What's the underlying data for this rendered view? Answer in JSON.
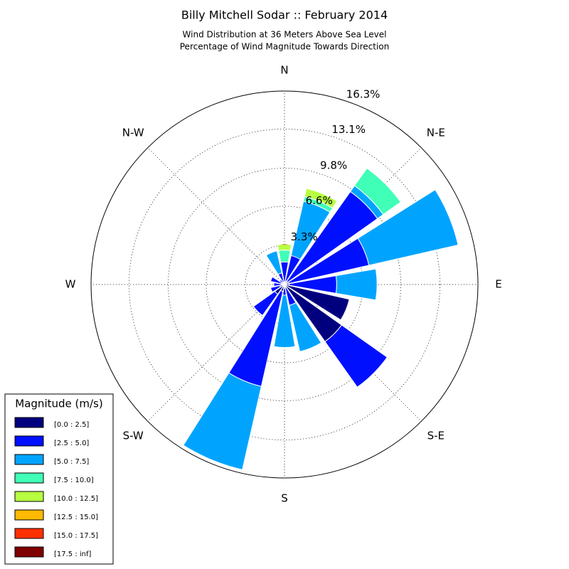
{
  "chart_data": {
    "type": "windrose",
    "title": "Billy Mitchell Sodar :: February 2014",
    "subtitle": [
      "Wind Distribution at 36 Meters Above Sea Level",
      "Percentage of Wind Magnitude Towards Direction"
    ],
    "categories": [
      "N",
      null,
      "N-E",
      null,
      "E",
      null,
      "S-E",
      null,
      "S",
      null,
      "S-W",
      null,
      "W",
      null,
      "N-W",
      null
    ],
    "rlim": [
      0,
      16.3
    ],
    "rticks": [
      {
        "value": 3.3,
        "label": "3.3%"
      },
      {
        "value": 6.6,
        "label": "6.6%"
      },
      {
        "value": 9.8,
        "label": "9.8%"
      },
      {
        "value": 13.1,
        "label": "13.1%"
      },
      {
        "value": 16.3,
        "label": "16.3%"
      }
    ],
    "grid": true,
    "legend_title": "Magnitude (m/s)",
    "legend_position": "lower left",
    "series": [
      {
        "name": "[0.0 : 2.5]",
        "color": "#00007f",
        "values": [
          0.2,
          0.3,
          0.3,
          0.4,
          0.4,
          5.6,
          5.9,
          0.3,
          0.3,
          0.6,
          1.0,
          0.4,
          0.3,
          0.3,
          0.2,
          0.2
        ]
      },
      {
        "name": "[2.5 : 5.0]",
        "color": "#0010ff",
        "values": [
          1.7,
          2.2,
          9.3,
          6.9,
          4.0,
          0,
          4.7,
          1.5,
          0.6,
          8.2,
          2.2,
          0.8,
          0.6,
          0.9,
          0.3,
          0.8
        ]
      },
      {
        "name": "[5.0 : 7.5]",
        "color": "#00a4ff",
        "values": [
          0,
          4.7,
          0.6,
          7.7,
          3.4,
          0,
          0,
          4.0,
          4.4,
          7.2,
          0,
          0,
          0,
          0,
          0,
          1.9
        ]
      },
      {
        "name": "[7.5 : 10.0]",
        "color": "#40ffb7",
        "values": [
          1.0,
          0.4,
          1.8,
          0,
          0,
          0,
          0,
          0,
          0,
          0,
          0,
          0,
          0,
          0,
          0,
          0
        ]
      },
      {
        "name": "[10.0 : 12.5]",
        "color": "#b7ff40",
        "values": [
          0.5,
          0.7,
          0,
          0,
          0,
          0,
          0,
          0,
          0,
          0,
          0,
          0,
          0,
          0,
          0,
          0
        ]
      },
      {
        "name": "[12.5 : 15.0]",
        "color": "#ffb900",
        "values": [
          0,
          0,
          0,
          0,
          0,
          0,
          0,
          0,
          0,
          0,
          0,
          0,
          0,
          0,
          0,
          0
        ]
      },
      {
        "name": "[15.0 : 17.5]",
        "color": "#ff3000",
        "values": [
          0,
          0,
          0,
          0,
          0,
          0,
          0,
          0,
          0,
          0,
          0,
          0,
          0,
          0,
          0,
          0
        ]
      },
      {
        "name": "[17.5 : inf]",
        "color": "#7f0000",
        "values": [
          0,
          0,
          0,
          0,
          0,
          0,
          0,
          0,
          0,
          0,
          0,
          0,
          0,
          0,
          0,
          0
        ]
      }
    ]
  }
}
